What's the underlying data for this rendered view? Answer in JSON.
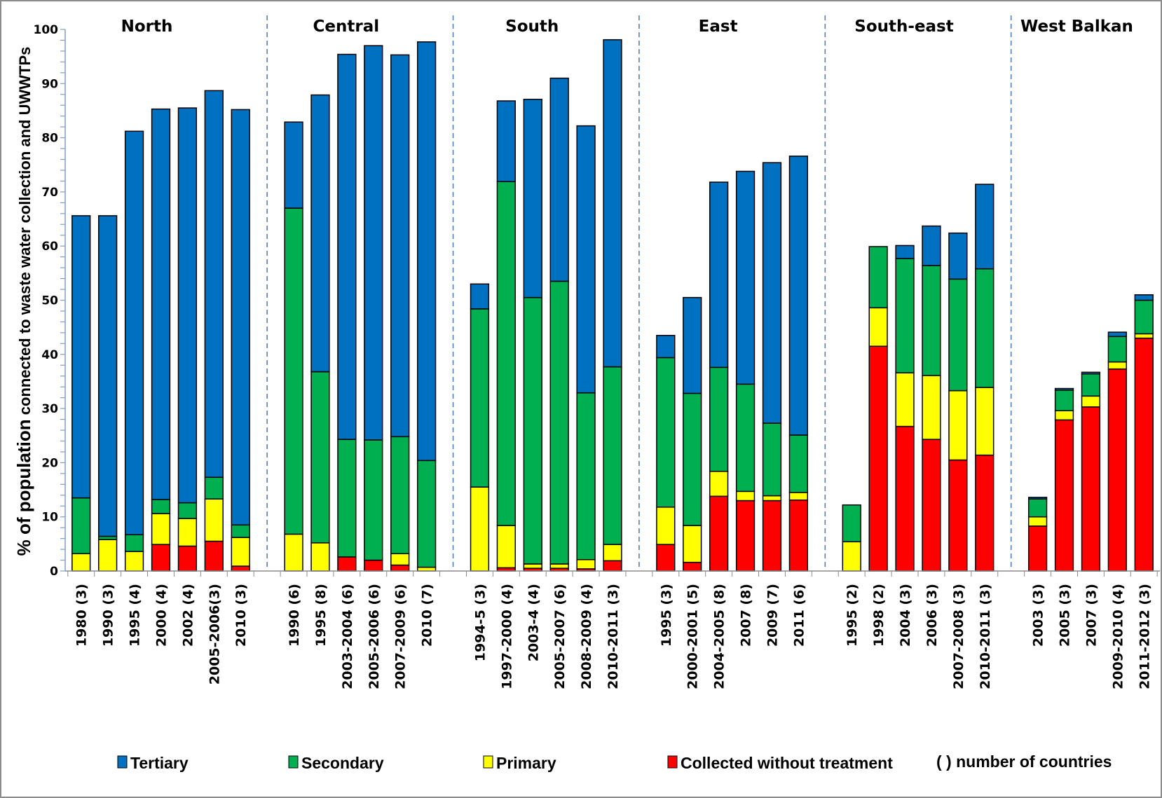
{
  "chart_data": {
    "type": "bar",
    "stacked": true,
    "title": "",
    "xlabel": "",
    "ylabel_bold": "% of population",
    "ylabel_rest": " connected to waste water collection and UWWTPs",
    "ylim": [
      0,
      100
    ],
    "yticks": [
      0,
      10,
      20,
      30,
      40,
      50,
      60,
      70,
      80,
      90,
      100
    ],
    "yminor_step": 2,
    "grid": false,
    "legend_position": "bottom",
    "legend_note": "( ) number of countries",
    "series": [
      {
        "key": "collected",
        "name": "Collected without treatment",
        "color": "#ff0000"
      },
      {
        "key": "primary",
        "name": "Primary",
        "color": "#ffff00"
      },
      {
        "key": "secondary",
        "name": "Secondary",
        "color": "#00b050"
      },
      {
        "key": "tertiary",
        "name": "Tertiary",
        "color": "#0070c0"
      }
    ],
    "legend_order": [
      "tertiary",
      "secondary",
      "primary",
      "collected"
    ],
    "groups": [
      {
        "name": "North",
        "bars": [
          {
            "label": "1980 (3)",
            "values": [
              0,
              3.2,
              10.3,
              52.1
            ]
          },
          {
            "label": "1990 (3)",
            "values": [
              0,
              5.8,
              0.6,
              59.2
            ]
          },
          {
            "label": "1995 (4)",
            "values": [
              0,
              3.6,
              3.1,
              74.5
            ]
          },
          {
            "label": "2000 (4)",
            "values": [
              4.9,
              5.7,
              2.6,
              72.1
            ]
          },
          {
            "label": "2002 (4)",
            "values": [
              4.6,
              5.1,
              2.9,
              72.9
            ]
          },
          {
            "label": "2005-2006(3)",
            "values": [
              5.5,
              7.8,
              4.0,
              71.4
            ]
          },
          {
            "label": "2010 (3)",
            "values": [
              0.9,
              5.3,
              2.3,
              76.7
            ]
          }
        ]
      },
      {
        "name": "Central",
        "bars": [
          {
            "label": "1990 (6)",
            "values": [
              0,
              6.8,
              60.2,
              15.9
            ]
          },
          {
            "label": "1995 (8)",
            "values": [
              0,
              5.2,
              31.6,
              51.1
            ]
          },
          {
            "label": "2003-2004 (6)",
            "values": [
              2.6,
              0,
              21.7,
              71.1
            ]
          },
          {
            "label": "2005-2006 (6)",
            "values": [
              2.0,
              0,
              22.2,
              72.8
            ]
          },
          {
            "label": "2007-2009 (6)",
            "values": [
              1.1,
              2.1,
              21.6,
              70.5
            ]
          },
          {
            "label": "2010 (7)",
            "values": [
              0,
              0.7,
              19.7,
              77.3
            ]
          }
        ]
      },
      {
        "name": "South",
        "bars": [
          {
            "label": "1994-5 (3)",
            "values": [
              0,
              15.5,
              32.9,
              4.6
            ]
          },
          {
            "label": "1997-2000 (4)",
            "values": [
              0.6,
              7.8,
              63.5,
              14.9
            ]
          },
          {
            "label": "2003-4 (4)",
            "values": [
              0.5,
              0.8,
              49.2,
              36.6
            ]
          },
          {
            "label": "2005-2007 (6)",
            "values": [
              0.5,
              0.8,
              52.2,
              37.5
            ]
          },
          {
            "label": "2008-2009 (4)",
            "values": [
              0.4,
              1.7,
              30.8,
              49.3
            ]
          },
          {
            "label": "2010-2011 (3)",
            "values": [
              1.9,
              3.0,
              32.8,
              60.4
            ]
          }
        ]
      },
      {
        "name": "East",
        "bars": [
          {
            "label": "1995 (3)",
            "values": [
              4.9,
              6.9,
              27.6,
              4.1
            ]
          },
          {
            "label": "2000-2001 (5)",
            "values": [
              1.6,
              6.8,
              24.4,
              17.7
            ]
          },
          {
            "label": "2004-2005 (8)",
            "values": [
              13.8,
              4.6,
              19.2,
              34.2
            ]
          },
          {
            "label": "2007 (8)",
            "values": [
              13.0,
              1.7,
              19.8,
              39.3
            ]
          },
          {
            "label": "2009 (7)",
            "values": [
              13.0,
              0.9,
              13.4,
              48.1
            ]
          },
          {
            "label": "2011 (6)",
            "values": [
              13.1,
              1.4,
              10.6,
              51.5
            ]
          }
        ]
      },
      {
        "name": "South-east",
        "bars": [
          {
            "label": "1995 (2)",
            "values": [
              0,
              5.4,
              6.8,
              0
            ]
          },
          {
            "label": "1998 (2)",
            "values": [
              41.5,
              7.1,
              11.3,
              0
            ]
          },
          {
            "label": "2004 (3)",
            "values": [
              26.7,
              9.9,
              21.1,
              2.4
            ]
          },
          {
            "label": "2006 (3)",
            "values": [
              24.3,
              11.8,
              20.3,
              7.3
            ]
          },
          {
            "label": "2007-2008 (3)",
            "values": [
              20.5,
              12.8,
              20.6,
              8.5
            ]
          },
          {
            "label": "2010-2011 (3)",
            "values": [
              21.4,
              12.5,
              21.9,
              15.6
            ]
          }
        ]
      },
      {
        "name": "West Balkan",
        "bars": [
          {
            "label": "2003 (3)",
            "values": [
              8.3,
              1.7,
              3.3,
              0.3
            ]
          },
          {
            "label": "2005 (3)",
            "values": [
              27.9,
              1.7,
              3.8,
              0.3
            ]
          },
          {
            "label": "2007 (3)",
            "values": [
              30.3,
              2.0,
              4.1,
              0.3
            ]
          },
          {
            "label": "2009-2010 (4)",
            "values": [
              37.3,
              1.3,
              4.7,
              0.8
            ]
          },
          {
            "label": "2011-2012 (3)",
            "values": [
              43.0,
              0.8,
              6.2,
              1.0
            ]
          }
        ]
      }
    ]
  }
}
